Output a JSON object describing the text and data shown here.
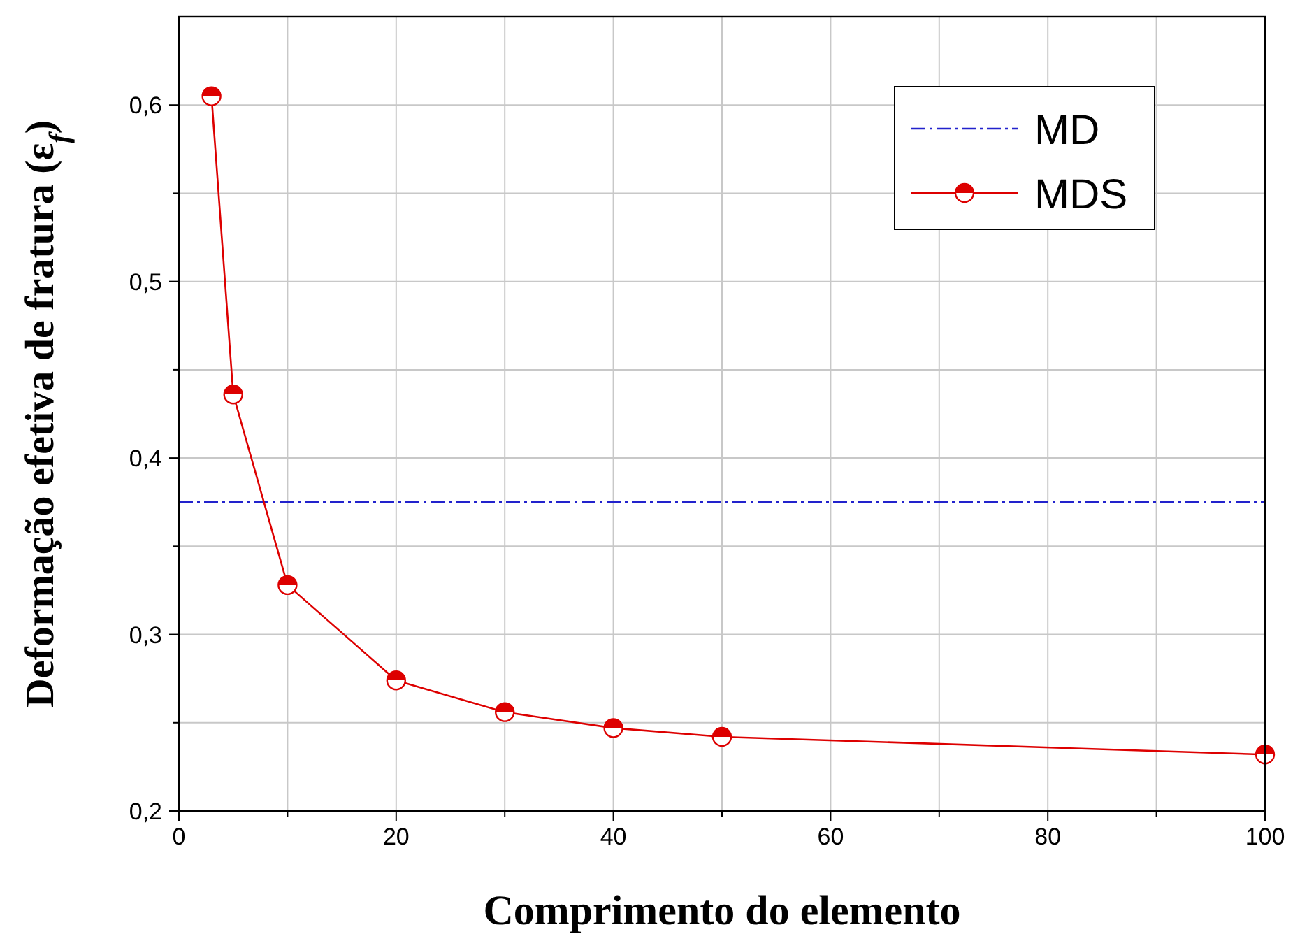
{
  "chart_data": {
    "type": "line",
    "xlabel": "Comprimento do elemento",
    "ylabel": "Deformação efetiva de fratura (ε$_{f}$)",
    "xlim": [
      0,
      100
    ],
    "ylim": [
      0.2,
      0.65
    ],
    "xticks": [
      0,
      {
        "value": 10,
        "label": null
      },
      20,
      {
        "value": 30,
        "label": null
      },
      40,
      {
        "value": 50,
        "label": null
      },
      60,
      {
        "value": 70,
        "label": null
      },
      80,
      {
        "value": 90,
        "label": null
      },
      100
    ],
    "yticks": [
      {
        "value": 0.2,
        "label": "0,2"
      },
      {
        "value": 0.25,
        "label": null
      },
      {
        "value": 0.3,
        "label": "0,3"
      },
      {
        "value": 0.35,
        "label": null
      },
      {
        "value": 0.4,
        "label": "0,4"
      },
      {
        "value": 0.45,
        "label": null
      },
      {
        "value": 0.5,
        "label": "0,5"
      },
      {
        "value": 0.55,
        "label": null
      },
      {
        "value": 0.6,
        "label": "0,6"
      }
    ],
    "grid": true,
    "legend": "top right",
    "series": [
      {
        "name": "MD",
        "color": "#2222cc",
        "x": [
          0,
          100
        ],
        "values": [
          0.375,
          0.375
        ],
        "line_style": "dashed",
        "marker": "none"
      },
      {
        "name": "MDS",
        "color": "#dd0000",
        "x": [
          3,
          5,
          10,
          20,
          30,
          40,
          50,
          100
        ],
        "values": [
          0.605,
          0.436,
          0.328,
          0.274,
          0.256,
          0.247,
          0.242,
          0.232
        ],
        "line_style": "solid",
        "marker": "circle"
      }
    ]
  }
}
